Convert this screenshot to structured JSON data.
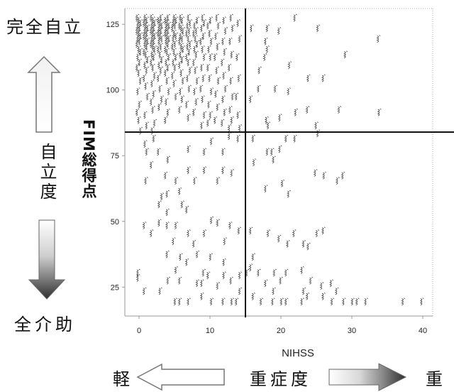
{
  "annotations": {
    "independent_top": "完全自立",
    "independence_axis": "自立度",
    "dependent_bottom": "全介助",
    "severity_mild": "軽",
    "severity_axis": "重症度",
    "severity_severe": "重"
  },
  "icons": {
    "independence_up": "up-arrow-icon",
    "dependence_down": "down-arrow-icon",
    "mild_left": "left-arrow-icon",
    "severe_right": "right-arrow-icon"
  },
  "colors": {
    "marker": "#333333",
    "reference_line": "#111111",
    "axis": "#999999",
    "arrow_outline": "#777777"
  },
  "chart_data": {
    "type": "scatter",
    "xlabel": "NIHSS",
    "ylabel": "FIM総得点",
    "xlim": [
      -2,
      41.4
    ],
    "ylim": [
      14,
      131
    ],
    "xticks": [
      0,
      10,
      20,
      30,
      40
    ],
    "yticks": [
      25,
      50,
      75,
      100,
      125
    ],
    "grid": false,
    "reference_lines": {
      "vertical_x": 15,
      "horizontal_y": 84
    },
    "points": [
      [
        0,
        127
      ],
      [
        0,
        126
      ],
      [
        0,
        125
      ],
      [
        0,
        124
      ],
      [
        0,
        123
      ],
      [
        0,
        122
      ],
      [
        0,
        121
      ],
      [
        0,
        120
      ],
      [
        0,
        119
      ],
      [
        0,
        118
      ],
      [
        0,
        117
      ],
      [
        0,
        115
      ],
      [
        0,
        114
      ],
      [
        0,
        112
      ],
      [
        0,
        110
      ],
      [
        0,
        108
      ],
      [
        0,
        106
      ],
      [
        0,
        103
      ],
      [
        0,
        99
      ],
      [
        0,
        94
      ],
      [
        0,
        91
      ],
      [
        0,
        88
      ],
      [
        0,
        84
      ],
      [
        1,
        127
      ],
      [
        1,
        126
      ],
      [
        1,
        125
      ],
      [
        1,
        124
      ],
      [
        1,
        123
      ],
      [
        1,
        122
      ],
      [
        1,
        121
      ],
      [
        1,
        120
      ],
      [
        1,
        119
      ],
      [
        1,
        118
      ],
      [
        1,
        117
      ],
      [
        1,
        116
      ],
      [
        1,
        114
      ],
      [
        1,
        113
      ],
      [
        1,
        111
      ],
      [
        1,
        109
      ],
      [
        1,
        107
      ],
      [
        1,
        104
      ],
      [
        1,
        101
      ],
      [
        1,
        97
      ],
      [
        1,
        90
      ],
      [
        1,
        86
      ],
      [
        2,
        127
      ],
      [
        2,
        126
      ],
      [
        2,
        125
      ],
      [
        2,
        124
      ],
      [
        2,
        123
      ],
      [
        2,
        122
      ],
      [
        2,
        121
      ],
      [
        2,
        120
      ],
      [
        2,
        119
      ],
      [
        2,
        118
      ],
      [
        2,
        117
      ],
      [
        2,
        116
      ],
      [
        2,
        115
      ],
      [
        2,
        113
      ],
      [
        2,
        112
      ],
      [
        2,
        110
      ],
      [
        2,
        108
      ],
      [
        2,
        105
      ],
      [
        2,
        102
      ],
      [
        2,
        98
      ],
      [
        2,
        95
      ],
      [
        2,
        92
      ],
      [
        2,
        87
      ],
      [
        2,
        84
      ],
      [
        3,
        127
      ],
      [
        3,
        126
      ],
      [
        3,
        125
      ],
      [
        3,
        124
      ],
      [
        3,
        123
      ],
      [
        3,
        122
      ],
      [
        3,
        121
      ],
      [
        3,
        120
      ],
      [
        3,
        119
      ],
      [
        3,
        118
      ],
      [
        3,
        116
      ],
      [
        3,
        115
      ],
      [
        3,
        113
      ],
      [
        3,
        111
      ],
      [
        3,
        109
      ],
      [
        3,
        107
      ],
      [
        3,
        104
      ],
      [
        3,
        100
      ],
      [
        3,
        96
      ],
      [
        3,
        93
      ],
      [
        4,
        127
      ],
      [
        4,
        126
      ],
      [
        4,
        125
      ],
      [
        4,
        124
      ],
      [
        4,
        123
      ],
      [
        4,
        122
      ],
      [
        4,
        121
      ],
      [
        4,
        120
      ],
      [
        4,
        119
      ],
      [
        4,
        118
      ],
      [
        4,
        117
      ],
      [
        4,
        115
      ],
      [
        4,
        114
      ],
      [
        4,
        112
      ],
      [
        4,
        110
      ],
      [
        4,
        108
      ],
      [
        4,
        106
      ],
      [
        4,
        103
      ],
      [
        4,
        99
      ],
      [
        4,
        95
      ],
      [
        4,
        91
      ],
      [
        4,
        88
      ],
      [
        5,
        127
      ],
      [
        5,
        126
      ],
      [
        5,
        125
      ],
      [
        5,
        124
      ],
      [
        5,
        123
      ],
      [
        5,
        121
      ],
      [
        5,
        120
      ],
      [
        5,
        119
      ],
      [
        5,
        117
      ],
      [
        5,
        116
      ],
      [
        5,
        114
      ],
      [
        5,
        112
      ],
      [
        5,
        110
      ],
      [
        5,
        108
      ],
      [
        5,
        105
      ],
      [
        5,
        102
      ],
      [
        5,
        97
      ],
      [
        6,
        127
      ],
      [
        6,
        126
      ],
      [
        6,
        124
      ],
      [
        6,
        123
      ],
      [
        6,
        122
      ],
      [
        6,
        120
      ],
      [
        6,
        119
      ],
      [
        6,
        118
      ],
      [
        6,
        116
      ],
      [
        6,
        115
      ],
      [
        6,
        113
      ],
      [
        6,
        111
      ],
      [
        6,
        109
      ],
      [
        6,
        106
      ],
      [
        6,
        103
      ],
      [
        6,
        99
      ],
      [
        6,
        96
      ],
      [
        6,
        92
      ],
      [
        7,
        127
      ],
      [
        7,
        125
      ],
      [
        7,
        124
      ],
      [
        7,
        122
      ],
      [
        7,
        121
      ],
      [
        7,
        119
      ],
      [
        7,
        117
      ],
      [
        7,
        116
      ],
      [
        7,
        114
      ],
      [
        7,
        112
      ],
      [
        7,
        110
      ],
      [
        7,
        107
      ],
      [
        7,
        104
      ],
      [
        7,
        100
      ],
      [
        7,
        94
      ],
      [
        7,
        89
      ],
      [
        8,
        126
      ],
      [
        8,
        124
      ],
      [
        8,
        122
      ],
      [
        8,
        121
      ],
      [
        8,
        119
      ],
      [
        8,
        117
      ],
      [
        8,
        115
      ],
      [
        8,
        113
      ],
      [
        8,
        110
      ],
      [
        8,
        107
      ],
      [
        8,
        103
      ],
      [
        8,
        99
      ],
      [
        8,
        95
      ],
      [
        8,
        91
      ],
      [
        9,
        127
      ],
      [
        9,
        125
      ],
      [
        9,
        123
      ],
      [
        9,
        120
      ],
      [
        9,
        118
      ],
      [
        9,
        115
      ],
      [
        9,
        112
      ],
      [
        9,
        108
      ],
      [
        9,
        104
      ],
      [
        9,
        100
      ],
      [
        9,
        96
      ],
      [
        9,
        90
      ],
      [
        9,
        86
      ],
      [
        10,
        126
      ],
      [
        10,
        124
      ],
      [
        10,
        121
      ],
      [
        10,
        118
      ],
      [
        10,
        115
      ],
      [
        10,
        112
      ],
      [
        10,
        108
      ],
      [
        10,
        104
      ],
      [
        10,
        99
      ],
      [
        10,
        94
      ],
      [
        10,
        90
      ],
      [
        10,
        87
      ],
      [
        11,
        127
      ],
      [
        11,
        124
      ],
      [
        11,
        120
      ],
      [
        11,
        116
      ],
      [
        11,
        112
      ],
      [
        11,
        107
      ],
      [
        11,
        103
      ],
      [
        11,
        98
      ],
      [
        11,
        93
      ],
      [
        11,
        88
      ],
      [
        12,
        126
      ],
      [
        12,
        122
      ],
      [
        12,
        118
      ],
      [
        12,
        114
      ],
      [
        12,
        110
      ],
      [
        12,
        105
      ],
      [
        12,
        100
      ],
      [
        12,
        96
      ],
      [
        12,
        91
      ],
      [
        12,
        87
      ],
      [
        13,
        127
      ],
      [
        13,
        123
      ],
      [
        13,
        118
      ],
      [
        13,
        113
      ],
      [
        13,
        108
      ],
      [
        13,
        103
      ],
      [
        13,
        97
      ],
      [
        13,
        92
      ],
      [
        13,
        88
      ],
      [
        13,
        85
      ],
      [
        14,
        125
      ],
      [
        14,
        119
      ],
      [
        14,
        112
      ],
      [
        14,
        104
      ],
      [
        14,
        97
      ],
      [
        14,
        90
      ],
      [
        14,
        85
      ],
      [
        16,
        123
      ],
      [
        18,
        123
      ],
      [
        20,
        122
      ],
      [
        22,
        127
      ],
      [
        25,
        123
      ],
      [
        18,
        118
      ],
      [
        18,
        115
      ],
      [
        18,
        112
      ],
      [
        17,
        107
      ],
      [
        21,
        109
      ],
      [
        24,
        104
      ],
      [
        29,
        113
      ],
      [
        34,
        119
      ],
      [
        26,
        104
      ],
      [
        19,
        100
      ],
      [
        17,
        100
      ],
      [
        21,
        99
      ],
      [
        16,
        96
      ],
      [
        18,
        88
      ],
      [
        18,
        86
      ],
      [
        20,
        89
      ],
      [
        22,
        91
      ],
      [
        24,
        92
      ],
      [
        25,
        86
      ],
      [
        28,
        92
      ],
      [
        34,
        91
      ],
      [
        16,
        81
      ],
      [
        21,
        81
      ],
      [
        22,
        81
      ],
      [
        25,
        83
      ],
      [
        20,
        77
      ],
      [
        18,
        76
      ],
      [
        19,
        76
      ],
      [
        19,
        73
      ],
      [
        16,
        72
      ],
      [
        25,
        68
      ],
      [
        26,
        67
      ],
      [
        29,
        67
      ],
      [
        28,
        65
      ],
      [
        20,
        64
      ],
      [
        18,
        62
      ],
      [
        21,
        60
      ],
      [
        16,
        46
      ],
      [
        26,
        46
      ],
      [
        18,
        45
      ],
      [
        22,
        45
      ],
      [
        25,
        45
      ],
      [
        20,
        43
      ],
      [
        21,
        41
      ],
      [
        23,
        41
      ],
      [
        24,
        40
      ],
      [
        16,
        36
      ],
      [
        16,
        32
      ],
      [
        23,
        31
      ],
      [
        15,
        30
      ],
      [
        17,
        30
      ],
      [
        19,
        30
      ],
      [
        21,
        30
      ],
      [
        20,
        27
      ],
      [
        24,
        27
      ],
      [
        18,
        26
      ],
      [
        27,
        26
      ],
      [
        26,
        25
      ],
      [
        19,
        23
      ],
      [
        23,
        23
      ],
      [
        28,
        23
      ],
      [
        16,
        21
      ],
      [
        24,
        21
      ],
      [
        26,
        21
      ],
      [
        17,
        19
      ],
      [
        19,
        19
      ],
      [
        20,
        19
      ],
      [
        21,
        19
      ],
      [
        23,
        19
      ],
      [
        27,
        19
      ],
      [
        29,
        19
      ],
      [
        30,
        19
      ],
      [
        31,
        19
      ],
      [
        32,
        19
      ],
      [
        37,
        19
      ],
      [
        40,
        19
      ],
      [
        2,
        81
      ],
      [
        13,
        82
      ],
      [
        14,
        81
      ],
      [
        10,
        80
      ],
      [
        1,
        79
      ],
      [
        1,
        76
      ],
      [
        3,
        76
      ],
      [
        7,
        77
      ],
      [
        9,
        76
      ],
      [
        12,
        76
      ],
      [
        4,
        73
      ],
      [
        2,
        71
      ],
      [
        7,
        69
      ],
      [
        9,
        69
      ],
      [
        12,
        69
      ],
      [
        13,
        68
      ],
      [
        4,
        67
      ],
      [
        1,
        65
      ],
      [
        5,
        65
      ],
      [
        8,
        65
      ],
      [
        11,
        65
      ],
      [
        6,
        61
      ],
      [
        4,
        60
      ],
      [
        3,
        59
      ],
      [
        3,
        56
      ],
      [
        6,
        56
      ],
      [
        7,
        54
      ],
      [
        4,
        53
      ],
      [
        10,
        50
      ],
      [
        3,
        49
      ],
      [
        11,
        49
      ],
      [
        1,
        48
      ],
      [
        4,
        48
      ],
      [
        5,
        48
      ],
      [
        13,
        48
      ],
      [
        14,
        46
      ],
      [
        2,
        45
      ],
      [
        7,
        45
      ],
      [
        9,
        45
      ],
      [
        5,
        42
      ],
      [
        12,
        42
      ],
      [
        8,
        41
      ],
      [
        4,
        37
      ],
      [
        8,
        37
      ],
      [
        6,
        36
      ],
      [
        10,
        36
      ],
      [
        7,
        34
      ],
      [
        12,
        34
      ],
      [
        5,
        31
      ],
      [
        0,
        30
      ],
      [
        9,
        30
      ],
      [
        10,
        29
      ],
      [
        12,
        29
      ],
      [
        14,
        29
      ],
      [
        0,
        28
      ],
      [
        4,
        27
      ],
      [
        6,
        27
      ],
      [
        13,
        27
      ],
      [
        8,
        26
      ],
      [
        9,
        26
      ],
      [
        11,
        25
      ],
      [
        1,
        23
      ],
      [
        3,
        23
      ],
      [
        14,
        23
      ],
      [
        9,
        21
      ],
      [
        5,
        19
      ],
      [
        6,
        19
      ],
      [
        7,
        19
      ],
      [
        10,
        19
      ],
      [
        12,
        19
      ],
      [
        13,
        19
      ],
      [
        14,
        19
      ]
    ]
  }
}
